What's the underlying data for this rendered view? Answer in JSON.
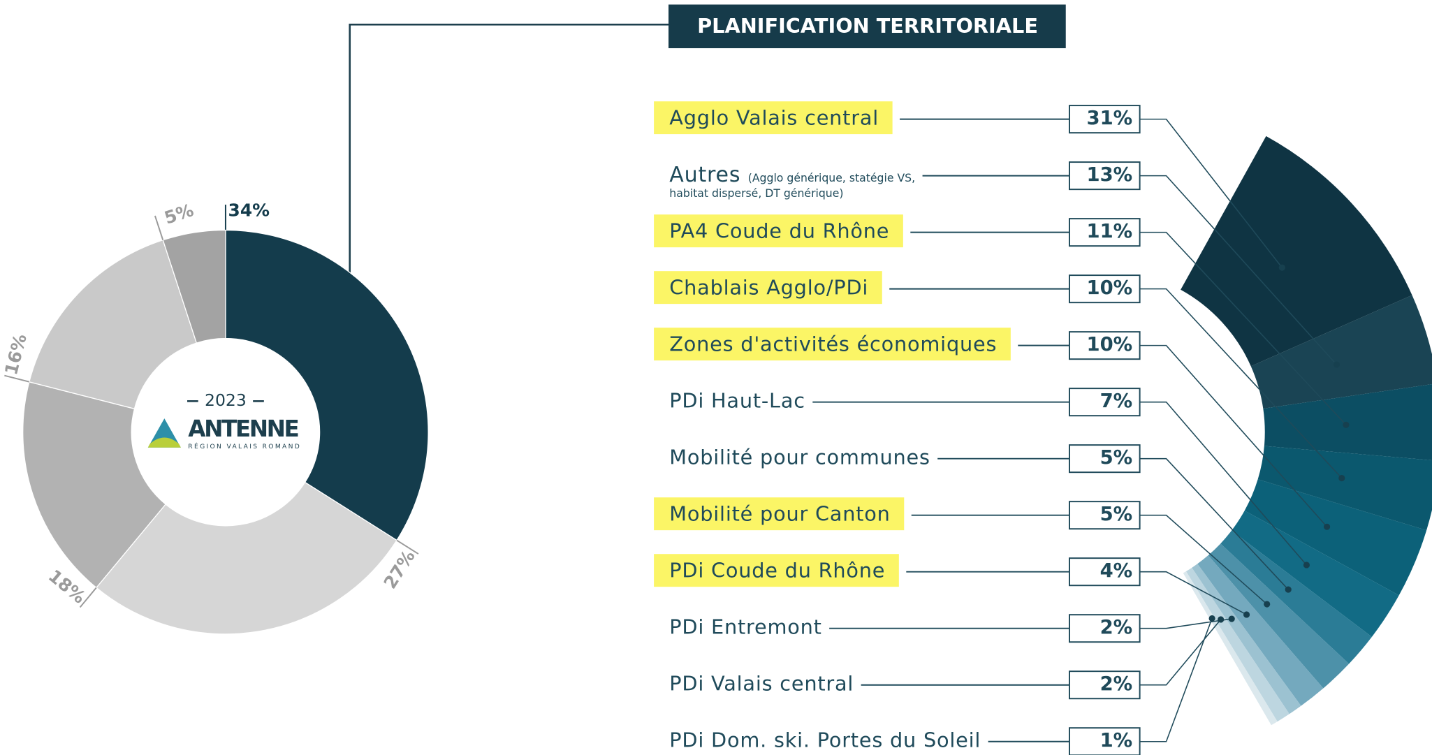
{
  "chart_data": [
    {
      "type": "pie",
      "values": [
        34,
        27,
        18,
        16,
        5
      ],
      "value_labels": [
        "34%",
        "27%",
        "18%",
        "16%",
        "5%"
      ],
      "colors": [
        "#143c4c",
        "#d6d6d6",
        "#b2b2b2",
        "#c9c9c9",
        "#a3a3a3"
      ],
      "label_colors": [
        "#143c4c",
        "#9a9a9a",
        "#9a9a9a",
        "#9a9a9a",
        "#9a9a9a"
      ],
      "center_label": "2023",
      "logo": {
        "name": "ANTENNE",
        "subtitle": "RÉGION VALAIS ROMAND"
      }
    },
    {
      "type": "fan",
      "title": "PLANIFICATION TERRITORIALE",
      "categories": [
        "Agglo Valais central",
        "Autres",
        "PA4 Coude du Rhône",
        "Chablais Agglo/PDi",
        "Zones d'activités économiques",
        "PDi Haut-Lac",
        "Mobilité pour communes",
        "Mobilité pour Canton",
        "PDi Coude du Rhône",
        "PDi Entremont",
        "PDi Valais central",
        "PDi Dom. ski. Portes du Soleil"
      ],
      "notes": [
        null,
        [
          "(Agglo générique, statégie VS,",
          "habitat dispersé, DT générique)"
        ],
        null,
        null,
        null,
        null,
        null,
        null,
        null,
        null,
        null,
        null
      ],
      "values": [
        31,
        13,
        11,
        10,
        10,
        7,
        5,
        5,
        4,
        2,
        2,
        1
      ],
      "value_labels": [
        "31%",
        "13%",
        "11%",
        "10%",
        "10%",
        "7%",
        "5%",
        "5%",
        "4%",
        "2%",
        "2%",
        "1%"
      ],
      "highlight": [
        true,
        false,
        true,
        true,
        true,
        false,
        false,
        true,
        true,
        false,
        false,
        false
      ],
      "colors": [
        "#0f3443",
        "#1a4454",
        "#0c4e63",
        "#0b586e",
        "#0c6179",
        "#126b85",
        "#2b7c96",
        "#4d91a9",
        "#74a9be",
        "#9cc2d1",
        "#bdd6e0",
        "#dbe8ed"
      ]
    }
  ]
}
